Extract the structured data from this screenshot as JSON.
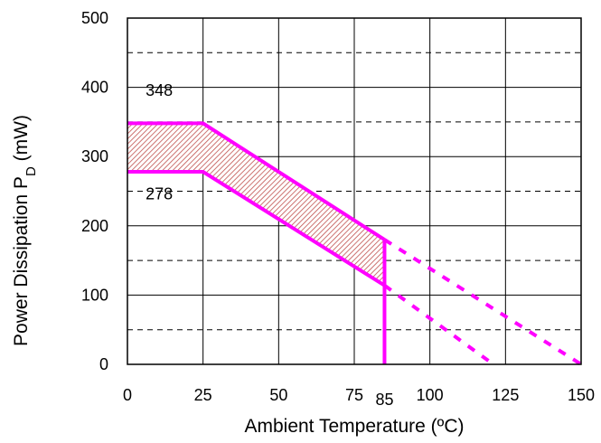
{
  "chart_data": {
    "type": "line",
    "title": "",
    "xlabel": "Ambient Temperature (ºC)",
    "ylabel_main": "Power Dissipation P",
    "ylabel_sub": "D",
    "ylabel_unit": " (mW)",
    "xlim": [
      0,
      150
    ],
    "ylim": [
      0,
      500
    ],
    "x_ticks": [
      "0",
      "25",
      "50",
      "75",
      "100",
      "125",
      "150"
    ],
    "x_tick_values": [
      0,
      25,
      50,
      75,
      100,
      125,
      150
    ],
    "extra_x_tick": {
      "label": "85",
      "value": 85
    },
    "y_ticks": [
      "0",
      "100",
      "200",
      "300",
      "400",
      "500"
    ],
    "y_tick_values": [
      0,
      100,
      200,
      300,
      400,
      500
    ],
    "minor_dashed_y": [
      50,
      150,
      250,
      350,
      450
    ],
    "grid": true,
    "legend": "none",
    "series": [
      {
        "x": [
          0,
          25,
          85
        ],
        "y": [
          348,
          348,
          180
        ]
      },
      {
        "x": [
          0,
          25,
          85
        ],
        "y": [
          278,
          278,
          114
        ]
      },
      {
        "x": [
          85,
          150
        ],
        "y": [
          180,
          0
        ],
        "style": "dashed"
      },
      {
        "x": [
          85,
          121
        ],
        "y": [
          114,
          0
        ],
        "style": "dashed"
      },
      {
        "x": [
          85,
          85
        ],
        "y": [
          180,
          0
        ]
      }
    ],
    "band": {
      "upper": {
        "x": [
          0,
          25,
          85
        ],
        "y": [
          348,
          348,
          180
        ]
      },
      "lower": {
        "x": [
          0,
          25,
          85
        ],
        "y": [
          278,
          278,
          114
        ]
      }
    },
    "annotations": [
      {
        "text": "348",
        "x": 6,
        "y": 388
      },
      {
        "text": "278",
        "x": 6,
        "y": 238
      }
    ],
    "colors": {
      "curve": "#ff00ff",
      "band": "#c0504d",
      "grid": "#000000"
    }
  }
}
